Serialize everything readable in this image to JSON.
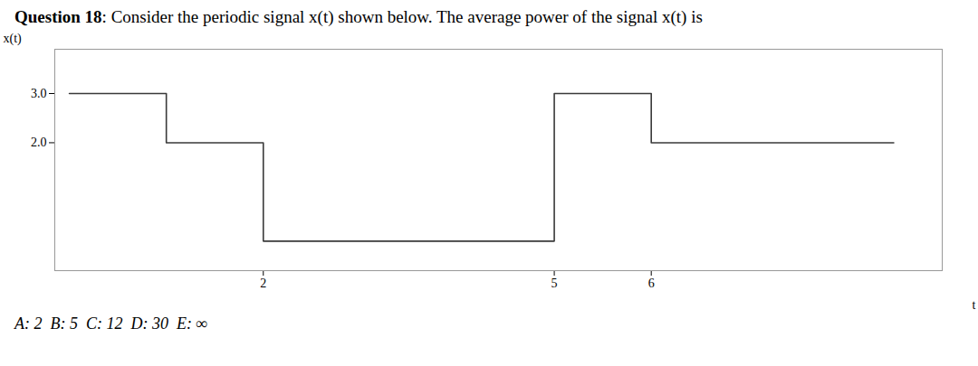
{
  "chart_data": {
    "type": "line",
    "title": "Question 18: Consider the periodic signal x(t) shown below. The average power of the signal x(t) is",
    "x_label": "t",
    "y_label": "x(t)",
    "x": [
      0,
      1,
      1,
      2,
      2,
      5,
      5,
      6,
      6,
      8.5
    ],
    "values": [
      3,
      3,
      2,
      2,
      0,
      0,
      3,
      3,
      2,
      2
    ],
    "color": "#3a3a3a",
    "xlim": [
      -0.15,
      9.0
    ],
    "ylim": [
      -0.6,
      3.9
    ],
    "xticks": [
      2,
      5,
      6
    ],
    "yticks": [
      2,
      3
    ],
    "grid": false,
    "annotations": [
      "A: 2  B: 5  C: 12  D: 30  E: ∞"
    ]
  }
}
